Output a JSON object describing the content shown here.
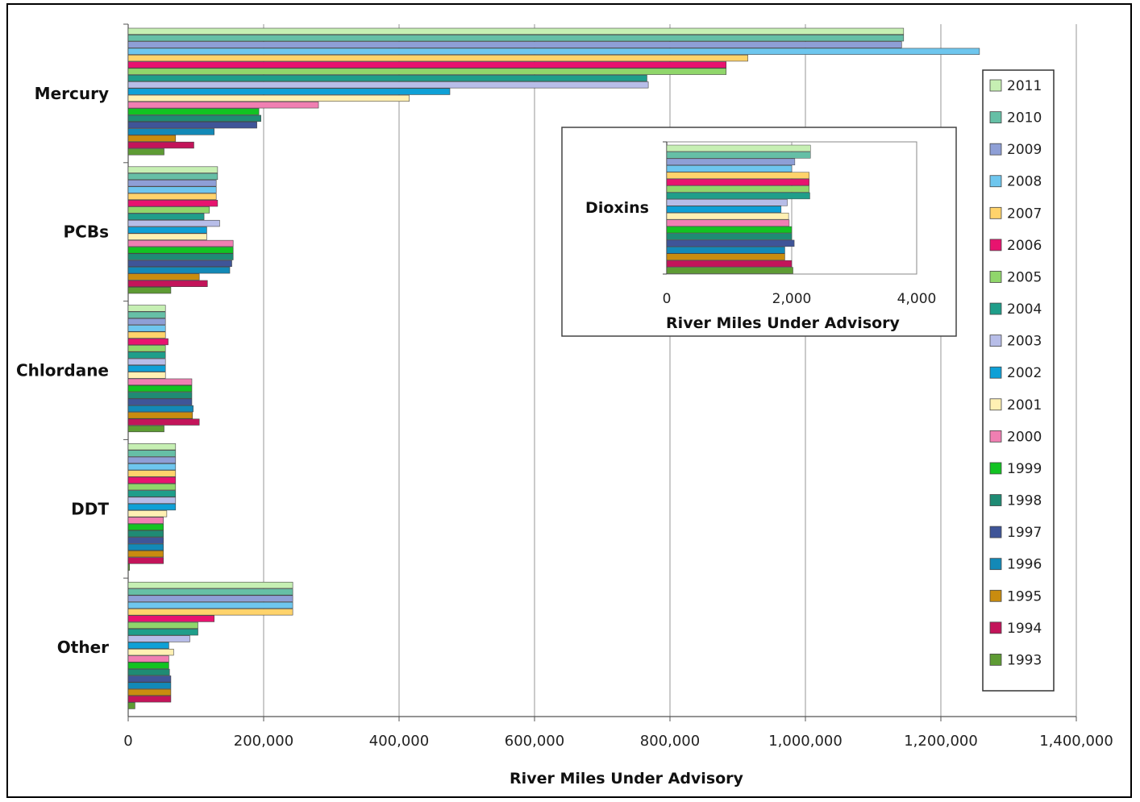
{
  "chart_data": [
    {
      "type": "bar",
      "orientation": "horizontal",
      "categories": [
        "Mercury",
        "PCBs",
        "Chlordane",
        "DDT",
        "Other"
      ],
      "xlabel": "River Miles Under Advisory",
      "ylabel": "",
      "xlim": [
        0,
        1400000
      ],
      "xticks": [
        0,
        200000,
        400000,
        600000,
        800000,
        1000000,
        1200000,
        1400000
      ],
      "xtick_labels": [
        "0",
        "200,000",
        "400,000",
        "600,000",
        "800,000",
        "1,000,000",
        "1,200,000",
        "1,400,000"
      ],
      "grid": "vertical",
      "legend_position": "right",
      "series": [
        {
          "name": "2011",
          "color": "#c6efb3",
          "values": [
            1145000,
            132000,
            55000,
            70000,
            243000
          ]
        },
        {
          "name": "2010",
          "color": "#66bfa6",
          "values": [
            1145000,
            132000,
            55000,
            70000,
            243000
          ]
        },
        {
          "name": "2009",
          "color": "#8e9fd6",
          "values": [
            1142000,
            130000,
            55000,
            70000,
            243000
          ]
        },
        {
          "name": "2008",
          "color": "#6ec6ee",
          "values": [
            1257000,
            130000,
            55000,
            70000,
            243000
          ]
        },
        {
          "name": "2007",
          "color": "#ffd36b",
          "values": [
            915000,
            130000,
            55000,
            70000,
            243000
          ]
        },
        {
          "name": "2006",
          "color": "#e8136f",
          "values": [
            883000,
            132000,
            59000,
            70000,
            127000
          ]
        },
        {
          "name": "2005",
          "color": "#90d66b",
          "values": [
            883000,
            120000,
            55000,
            70000,
            103000
          ]
        },
        {
          "name": "2004",
          "color": "#1f9e8a",
          "values": [
            766000,
            112000,
            55000,
            70000,
            103000
          ]
        },
        {
          "name": "2003",
          "color": "#b7bde8",
          "values": [
            768000,
            135000,
            55000,
            70000,
            91000
          ]
        },
        {
          "name": "2002",
          "color": "#0fa0d6",
          "values": [
            475000,
            116000,
            55000,
            70000,
            60000
          ]
        },
        {
          "name": "2001",
          "color": "#fff0b3",
          "values": [
            415000,
            116000,
            55000,
            57000,
            67000
          ]
        },
        {
          "name": "2000",
          "color": "#f07fb2",
          "values": [
            281000,
            155000,
            94000,
            52000,
            60000
          ]
        },
        {
          "name": "1999",
          "color": "#12c322",
          "values": [
            193000,
            155000,
            94000,
            52000,
            60000
          ]
        },
        {
          "name": "1998",
          "color": "#1f8b74",
          "values": [
            196000,
            155000,
            94000,
            52000,
            61000
          ]
        },
        {
          "name": "1997",
          "color": "#3f5598",
          "values": [
            190000,
            153000,
            94000,
            52000,
            63000
          ]
        },
        {
          "name": "1996",
          "color": "#1389b7",
          "values": [
            127000,
            150000,
            96000,
            52000,
            63000
          ]
        },
        {
          "name": "1995",
          "color": "#c98c0f",
          "values": [
            70000,
            105000,
            95000,
            52000,
            63000
          ]
        },
        {
          "name": "1994",
          "color": "#c3145a",
          "values": [
            97000,
            117000,
            105000,
            52000,
            63000
          ]
        },
        {
          "name": "1993",
          "color": "#5e9b34",
          "values": [
            53000,
            63000,
            53000,
            2000,
            10000
          ]
        }
      ]
    },
    {
      "type": "bar",
      "orientation": "horizontal",
      "categories": [
        "Dioxins"
      ],
      "xlabel": "River Miles Under Advisory",
      "xlim": [
        0,
        4000
      ],
      "xticks": [
        0,
        2000,
        4000
      ],
      "xtick_labels": [
        "0",
        "2,000",
        "4,000"
      ],
      "series_values": [
        2300,
        2300,
        2050,
        2000,
        2280,
        2280,
        2280,
        2290,
        1930,
        1830,
        1950,
        1960,
        2000,
        2000,
        2040,
        1890,
        1890,
        2000,
        2020
      ]
    }
  ]
}
